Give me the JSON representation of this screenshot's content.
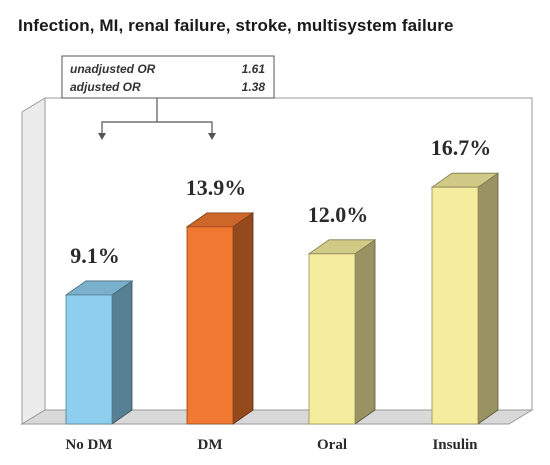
{
  "chart_data": {
    "type": "bar",
    "title": "Infection, MI, renal failure, stroke, multisystem failure",
    "categories": [
      "No DM",
      "DM",
      "Oral",
      "Insulin"
    ],
    "values": [
      9.1,
      13.9,
      12.0,
      16.7
    ],
    "value_labels": [
      "9.1%",
      "13.9%",
      "12.0%",
      "16.7%"
    ],
    "ylim": [
      0,
      22
    ],
    "grid": false,
    "colors": {
      "No DM": "#8ecfef",
      "DM": "#f07830",
      "Oral": "#f6ec9e",
      "Insulin": "#f6ec9e"
    },
    "annotation": {
      "rows": [
        {
          "label": "unadjusted OR",
          "value": "1.61"
        },
        {
          "label": "adjusted OR",
          "value": "1.38"
        }
      ],
      "compares": [
        "No DM",
        "DM"
      ]
    }
  }
}
